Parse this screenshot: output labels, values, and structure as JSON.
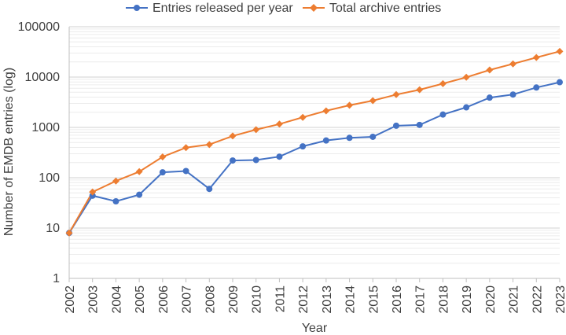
{
  "chart_data": {
    "type": "line",
    "title": "",
    "xlabel": "Year",
    "ylabel": "Number of EMDB entries (log)",
    "y_scale": "log",
    "ylim": [
      1,
      100000
    ],
    "y_ticks": [
      1,
      10,
      100,
      1000,
      10000,
      100000
    ],
    "y_tick_labels": [
      "1",
      "10",
      "100",
      "1000",
      "10000",
      "100000"
    ],
    "grid": "horizontal major and minor",
    "legend_position": "top",
    "categories": [
      "2002",
      "2003",
      "2004",
      "2005",
      "2006",
      "2007",
      "2008",
      "2009",
      "2010",
      "2011",
      "2012",
      "2013",
      "2014",
      "2015",
      "2016",
      "2017",
      "2018",
      "2019",
      "2020",
      "2021",
      "2022",
      "2023"
    ],
    "series": [
      {
        "name": "Entries released per year",
        "color": "#4472C4",
        "marker": "circle",
        "values": [
          8,
          44,
          34,
          46,
          128,
          136,
          60,
          220,
          225,
          262,
          420,
          550,
          620,
          650,
          1080,
          1120,
          1800,
          2500,
          3900,
          4500,
          6200,
          7900
        ]
      },
      {
        "name": "Total archive entries",
        "color": "#ED7D31",
        "marker": "diamond",
        "values": [
          8,
          52,
          86,
          132,
          260,
          396,
          456,
          676,
          901,
          1163,
          1583,
          2133,
          2753,
          3403,
          4483,
          5603,
          7403,
          9903,
          13803,
          18303,
          24503,
          32403
        ]
      }
    ]
  }
}
